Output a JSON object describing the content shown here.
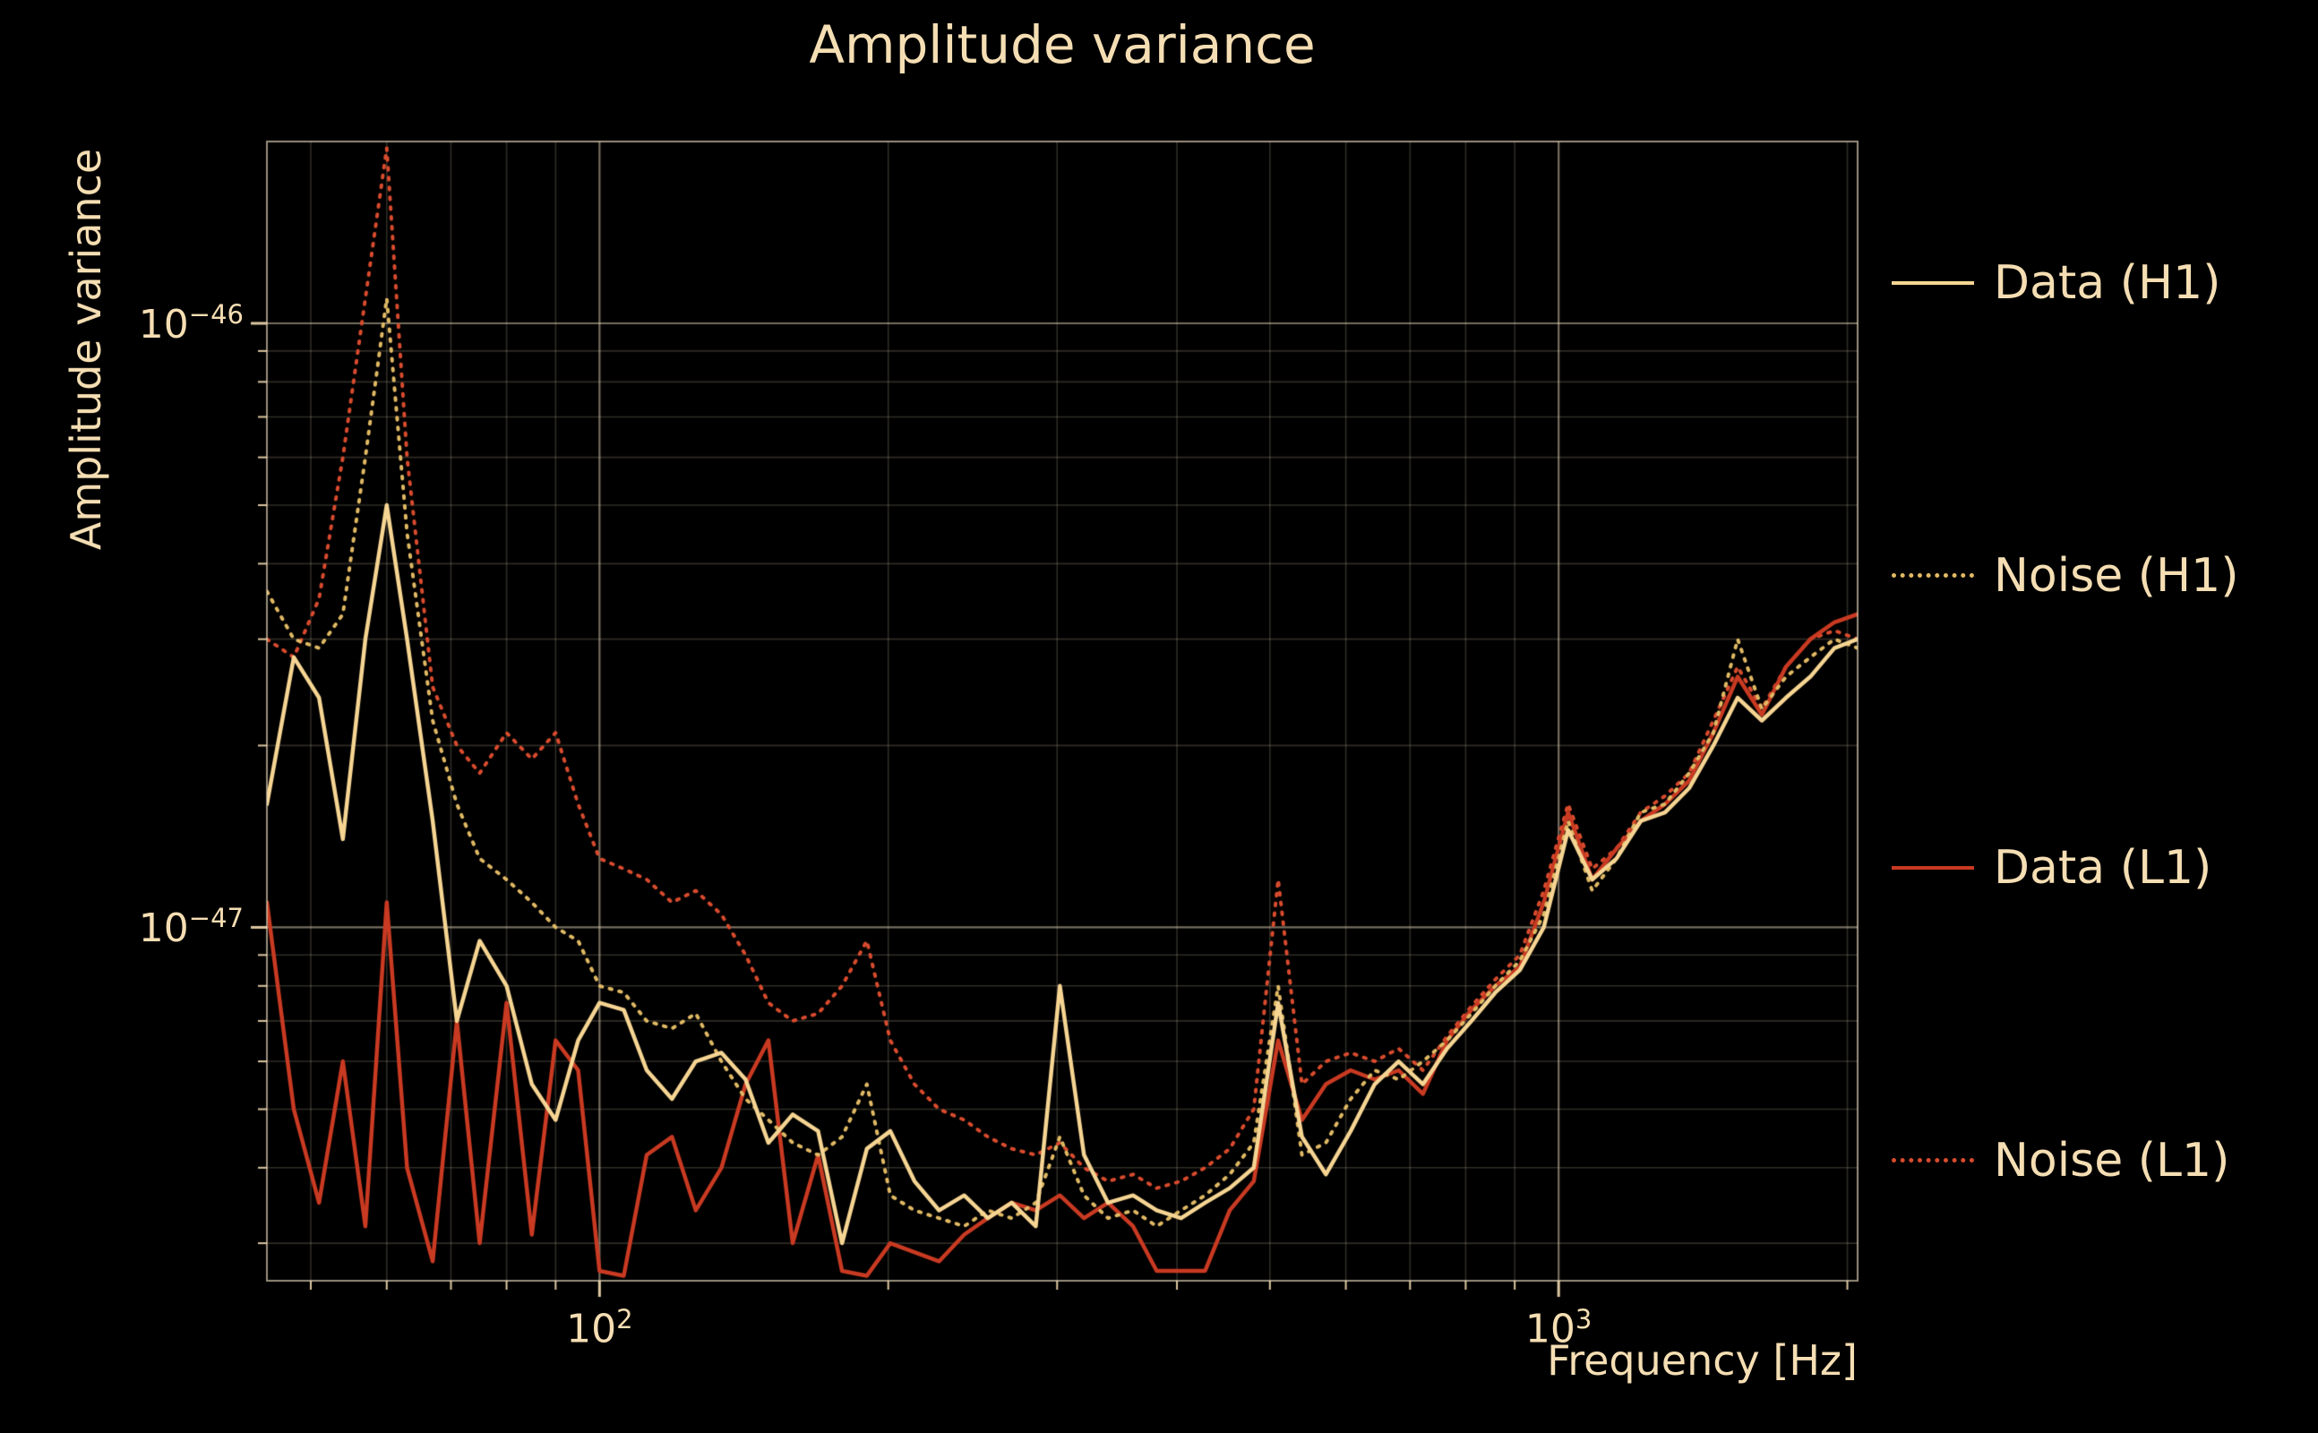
{
  "colors": {
    "background": "#000000",
    "text": "#f5deb3",
    "h1_solid": "#f6d593",
    "h1_dotted": "#e0b964",
    "l1_solid": "#c93a22",
    "l1_dotted": "#d84b2e",
    "grid_major": "rgba(235,220,190,0.50)",
    "grid_minor": "rgba(235,220,190,0.20)",
    "frame": "rgba(235,220,190,0.65)",
    "tick": "rgba(245,222,179,0.9)"
  },
  "chart_data": {
    "type": "line",
    "title": "Amplitude variance",
    "xlabel": "Frequency [Hz]",
    "ylabel": "Amplitude variance",
    "xscale": "log",
    "yscale": "log",
    "grid": "on",
    "legend_position": "outside-right",
    "xlim": [
      45,
      2050
    ],
    "ylim": [
      2.6e-48,
      2e-46
    ],
    "value_scale": 1e-48,
    "x_hz": [
      45,
      48,
      51,
      54,
      57,
      60,
      63,
      67,
      71,
      75,
      80,
      85,
      90,
      95,
      100,
      106,
      112,
      119,
      126,
      134,
      142,
      150,
      159,
      169,
      179,
      190,
      201,
      213,
      226,
      240,
      254,
      269,
      285,
      302,
      320,
      339,
      360,
      381,
      404,
      428,
      454,
      481,
      510,
      540,
      572,
      607,
      643,
      681,
      722,
      765,
      811,
      859,
      911,
      965,
      1023,
      1084,
      1149,
      1218,
      1291,
      1368,
      1450,
      1537,
      1629,
      1726,
      1830,
      1939,
      2050
    ],
    "series": [
      {
        "name": "Data (H1)",
        "color": "#f6d593",
        "style": "solid",
        "values_e48": [
          16,
          28,
          24,
          14,
          30,
          50,
          30,
          15,
          7,
          9.5,
          8,
          5.5,
          4.8,
          6.5,
          7.5,
          7.3,
          5.8,
          5.2,
          6.0,
          6.2,
          5.6,
          4.4,
          4.9,
          4.6,
          3.0,
          4.3,
          4.6,
          3.8,
          3.4,
          3.6,
          3.3,
          3.5,
          3.2,
          8.0,
          4.2,
          3.5,
          3.6,
          3.4,
          3.3,
          3.5,
          3.7,
          4.0,
          7.5,
          4.5,
          3.9,
          4.6,
          5.5,
          6.0,
          5.5,
          6.3,
          7.0,
          7.8,
          8.5,
          10,
          14.5,
          12,
          13,
          15,
          15.5,
          17,
          20,
          24,
          22,
          24,
          26,
          29,
          30
        ]
      },
      {
        "name": "Noise (H1)",
        "color": "#e0b964",
        "style": "dotted",
        "values_e48": [
          36,
          30,
          29,
          33,
          60,
          110,
          45,
          22,
          16,
          13,
          12,
          11,
          10,
          9.5,
          8.0,
          7.8,
          7.0,
          6.8,
          7.2,
          6.0,
          5.2,
          4.8,
          4.4,
          4.2,
          4.5,
          5.5,
          3.6,
          3.4,
          3.3,
          3.2,
          3.4,
          3.3,
          3.5,
          4.5,
          3.6,
          3.3,
          3.4,
          3.2,
          3.4,
          3.6,
          3.9,
          4.4,
          8.0,
          4.2,
          4.4,
          5.2,
          5.8,
          5.6,
          6.0,
          6.5,
          7.2,
          8.0,
          8.8,
          10.5,
          15,
          11.5,
          13,
          15.5,
          16,
          18,
          21,
          30,
          23,
          26,
          28,
          30,
          29
        ]
      },
      {
        "name": "Data (L1)",
        "color": "#c93a22",
        "style": "solid",
        "values_e48": [
          11,
          5,
          3.5,
          6,
          3.2,
          11,
          4,
          2.8,
          7,
          3,
          7.5,
          3.1,
          6.5,
          5.8,
          2.7,
          2.65,
          4.2,
          4.5,
          3.4,
          4.0,
          5.5,
          6.5,
          3.0,
          4.2,
          2.7,
          2.65,
          3.0,
          2.9,
          2.8,
          3.1,
          3.3,
          3.5,
          3.4,
          3.6,
          3.3,
          3.5,
          3.2,
          2.7,
          2.7,
          2.7,
          3.4,
          3.8,
          6.5,
          4.8,
          5.5,
          5.8,
          5.6,
          5.8,
          5.3,
          6.5,
          7.3,
          8.0,
          8.6,
          11,
          15.5,
          12,
          13.5,
          15,
          16,
          17.5,
          21,
          26,
          22.5,
          27,
          30,
          32,
          33
        ]
      },
      {
        "name": "Noise (L1)",
        "color": "#d84b2e",
        "style": "dotted",
        "values_e48": [
          30,
          28,
          35,
          60,
          110,
          195,
          60,
          25,
          20,
          18,
          21,
          19,
          21,
          16,
          13,
          12.5,
          12,
          11,
          11.5,
          10.5,
          9,
          7.5,
          7,
          7.2,
          8,
          9.5,
          6.5,
          5.5,
          5,
          4.8,
          4.5,
          4.3,
          4.2,
          4.4,
          4.0,
          3.8,
          3.9,
          3.7,
          3.8,
          4.0,
          4.3,
          5.0,
          12,
          5.5,
          6.0,
          6.2,
          6.0,
          6.3,
          5.8,
          6.6,
          7.4,
          8.2,
          9.0,
          11.5,
          16,
          12.5,
          13.5,
          15.5,
          16.5,
          18,
          22,
          27,
          23,
          27,
          30,
          31,
          30
        ]
      }
    ],
    "x_ticks": [
      {
        "value": 100,
        "label": "10",
        "exp": "2"
      },
      {
        "value": 1000,
        "label": "10",
        "exp": "3"
      }
    ],
    "y_ticks": [
      {
        "value": 1e-46,
        "label": "10",
        "exp": "−46"
      },
      {
        "value": 1e-47,
        "label": "10",
        "exp": "−47"
      }
    ]
  }
}
